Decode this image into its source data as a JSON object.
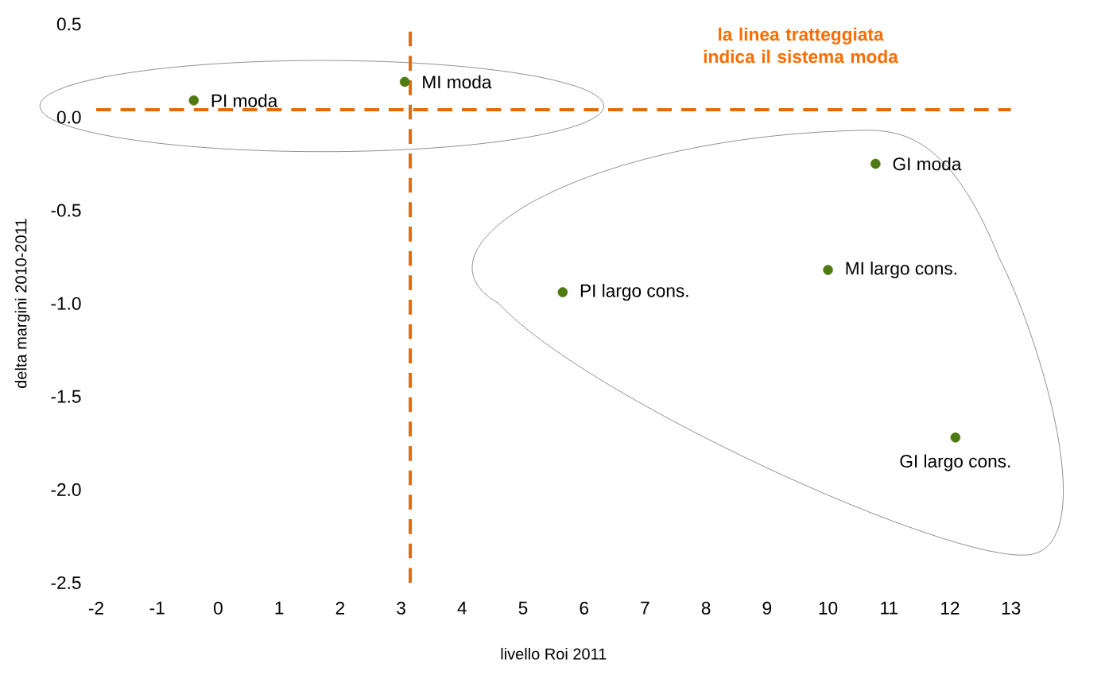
{
  "chart_data": {
    "type": "scatter",
    "xlabel": "livello Roi 2011",
    "ylabel": "delta margini 2010-2011",
    "x": [
      -0.4,
      3.06,
      10.78,
      10.0,
      5.65,
      12.09
    ],
    "series": [
      {
        "color": "#4f7a12",
        "values": [
          0.09,
          0.19,
          -0.25,
          -0.82,
          -0.94,
          -1.72
        ]
      }
    ],
    "marker": "circle",
    "grid": false,
    "xlim": [
      -2,
      13
    ],
    "xticks": [
      -2,
      -1,
      0,
      1,
      2,
      3,
      4,
      5,
      6,
      7,
      8,
      9,
      10,
      11,
      12,
      13
    ],
    "ylim": [
      -2.5,
      0.5
    ],
    "yticks": [
      {
        "value": 0.5,
        "label": "0.5"
      },
      {
        "value": 0,
        "label": "0.0"
      },
      {
        "value": -0.5,
        "label": "-0.5"
      },
      {
        "value": -1,
        "label": "-1.0"
      },
      {
        "value": -1.5,
        "label": "-1.5"
      },
      {
        "value": -2,
        "label": "-2.0"
      },
      {
        "value": -2.5,
        "label": "-2.5"
      }
    ],
    "ref_lines": [
      {
        "axis": "y",
        "value": 0.04,
        "color": "#e36c0a",
        "line_style": "dashed"
      },
      {
        "axis": "x",
        "value": 3.15,
        "color": "#e36c0a",
        "line_style": "dashed"
      }
    ],
    "annotations": [
      {
        "text": "PI moda",
        "x": -0.4,
        "y": 0.09
      },
      {
        "text": "MI moda",
        "x": 3.06,
        "y": 0.19
      },
      {
        "text": "GI moda",
        "x": 10.78,
        "y": -0.25
      },
      {
        "text": "MI largo cons.",
        "x": 10.0,
        "y": -0.82
      },
      {
        "text": "PI largo cons.",
        "x": 5.65,
        "y": -0.94
      },
      {
        "text": "GI largo cons.",
        "x": 12.09,
        "y": -1.72
      },
      "la linea tratteggiata indica il sistema moda"
    ]
  }
}
